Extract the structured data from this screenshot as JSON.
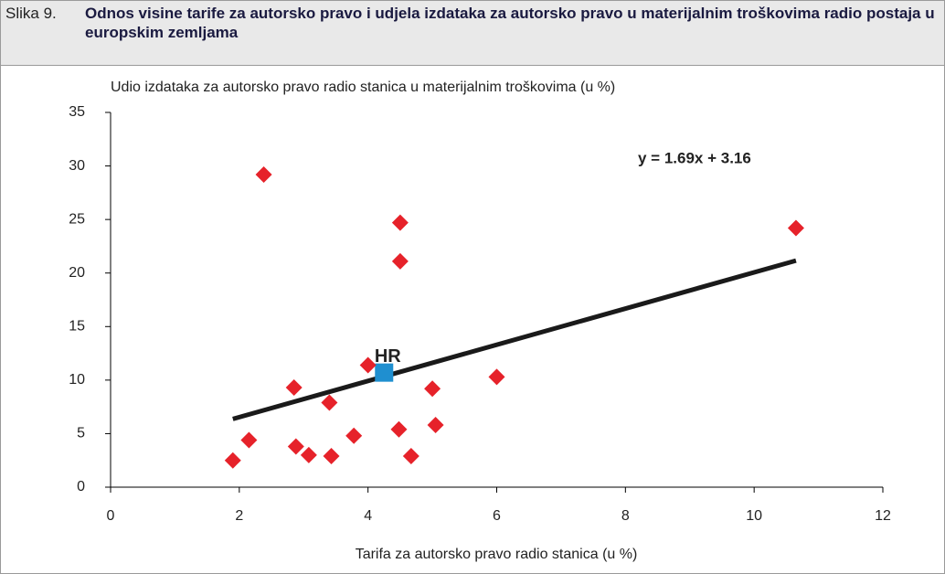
{
  "chart_data": {
    "type": "scatter",
    "figure_number": "Slika 9.",
    "title": "Odnos visine tarife za autorsko pravo i udjela izdataka za autorsko pravo u materijalnim troškovima radio postaja u europskim zemljama",
    "ylabel": "Udio izdataka za autorsko pravo radio stanica u materijalnim troškovima  (u %)",
    "xlabel": "Tarifa za autorsko pravo radio stanica (u %)",
    "xlim": [
      0,
      12
    ],
    "xticks": [
      0,
      2,
      4,
      6,
      8,
      10,
      12
    ],
    "ylim": [
      0,
      35
    ],
    "yticks": [
      0,
      5,
      10,
      15,
      20,
      25,
      30,
      35
    ],
    "color": "#e6222a",
    "x": [
      1.9,
      2.15,
      2.38,
      2.85,
      2.88,
      3.08,
      3.4,
      3.43,
      3.78,
      4.0,
      4.48,
      4.5,
      4.5,
      4.67,
      5.0,
      5.05,
      6.0,
      10.65
    ],
    "y": [
      2.5,
      4.4,
      29.2,
      9.3,
      3.8,
      3.0,
      7.9,
      2.9,
      4.8,
      11.4,
      5.4,
      24.7,
      21.1,
      2.9,
      9.2,
      5.8,
      10.3,
      24.2
    ],
    "highlight": {
      "label": "HR",
      "x": 4.25,
      "y": 10.7,
      "color": "#1f8fd0"
    },
    "trendline": {
      "label": "y = 1.69x + 3.16",
      "x": [
        1.9,
        10.65
      ],
      "y": [
        6.37,
        21.16
      ],
      "color": "#1a1a1a"
    }
  }
}
